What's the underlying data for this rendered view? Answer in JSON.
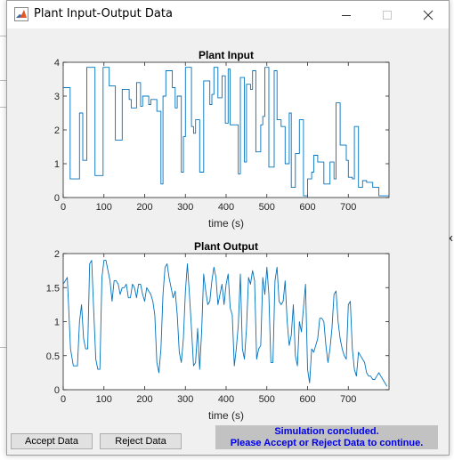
{
  "window": {
    "title": "Plant Input-Output Data",
    "icon": "matlab-icon",
    "controls": [
      "minimize-icon",
      "maximize-icon",
      "close-icon"
    ]
  },
  "background": {
    "edge_glyph": "x"
  },
  "buttons": {
    "accept_label": "Accept Data",
    "reject_label": "Reject Data"
  },
  "status": {
    "line1": "Simulation concluded.",
    "line2": "Please Accept or Reject Data to continue.",
    "color": "#0000ee"
  },
  "colors": {
    "line": "#0072bd",
    "panel": "#f0f0f0",
    "status_bg": "#c2c2c2"
  },
  "chart_data": [
    {
      "type": "line",
      "title": "Plant Input",
      "xlabel": "time (s)",
      "ylabel": "",
      "xlim": [
        0,
        800
      ],
      "ylim": [
        0,
        4
      ],
      "xticks": [
        "0",
        "100",
        "200",
        "300",
        "400",
        "500",
        "600",
        "700"
      ],
      "yticks": [
        "0",
        "1",
        "2",
        "3",
        "4"
      ],
      "series": [
        {
          "step": true,
          "x": [
            0,
            17,
            40,
            48,
            58,
            78,
            98,
            113,
            128,
            145,
            162,
            167,
            180,
            190,
            195,
            210,
            215,
            230,
            240,
            245,
            252,
            268,
            275,
            280,
            290,
            295,
            300,
            315,
            320,
            325,
            335,
            345,
            360,
            365,
            370,
            380,
            390,
            398,
            405,
            410,
            430,
            435,
            445,
            450,
            460,
            465,
            473,
            485,
            490,
            495,
            505,
            518,
            525,
            535,
            545,
            555,
            560,
            570,
            580,
            590,
            600,
            610,
            615,
            625,
            630,
            640,
            655,
            665,
            670,
            680,
            695,
            700,
            710,
            715,
            725,
            735,
            745,
            760,
            775
          ],
          "y": [
            3.25,
            0.55,
            2.5,
            1.1,
            3.85,
            0.65,
            3.85,
            3.3,
            1.7,
            3.2,
            2.9,
            2.65,
            3.4,
            2.7,
            3.0,
            2.75,
            2.9,
            2.55,
            0.4,
            3.0,
            3.75,
            3.25,
            2.65,
            3.0,
            0.75,
            1.8,
            3.85,
            2.1,
            1.9,
            2.3,
            0.75,
            3.45,
            2.75,
            3.05,
            3.85,
            2.95,
            3.6,
            2.2,
            3.8,
            2.15,
            0.7,
            3.55,
            1.05,
            3.35,
            3.2,
            3.75,
            1.35,
            2.15,
            2.4,
            3.85,
            0.9,
            3.75,
            2.3,
            2.1,
            1.0,
            2.5,
            0.3,
            1.3,
            2.3,
            0.05,
            0.55,
            0.75,
            1.25,
            1.05,
            1.05,
            0.4,
            1.05,
            0.55,
            2.8,
            1.55,
            1.1,
            0.6,
            0.55,
            2.1,
            0.3,
            0.5,
            0.45,
            0.3,
            0.05
          ]
        }
      ]
    },
    {
      "type": "line",
      "title": "Plant Output",
      "xlabel": "time (s)",
      "ylabel": "",
      "xlim": [
        0,
        800
      ],
      "ylim": [
        0,
        2
      ],
      "xticks": [
        "0",
        "100",
        "200",
        "300",
        "400",
        "500",
        "600",
        "700"
      ],
      "yticks": [
        "0",
        "0.5",
        "1",
        "1.5",
        "2"
      ],
      "series": [
        {
          "x": [
            0,
            5,
            10,
            18,
            25,
            35,
            40,
            45,
            50,
            55,
            60,
            65,
            70,
            75,
            80,
            85,
            90,
            95,
            100,
            105,
            110,
            115,
            120,
            125,
            130,
            135,
            140,
            145,
            150,
            155,
            160,
            165,
            170,
            175,
            180,
            185,
            190,
            195,
            200,
            205,
            210,
            215,
            220,
            225,
            230,
            235,
            240,
            245,
            250,
            255,
            260,
            265,
            270,
            275,
            280,
            285,
            290,
            295,
            300,
            305,
            310,
            315,
            320,
            325,
            330,
            335,
            340,
            345,
            350,
            355,
            360,
            365,
            370,
            375,
            380,
            385,
            390,
            395,
            400,
            405,
            410,
            415,
            420,
            425,
            430,
            435,
            440,
            445,
            450,
            455,
            460,
            465,
            470,
            475,
            480,
            485,
            490,
            495,
            500,
            505,
            510,
            515,
            520,
            525,
            530,
            535,
            540,
            545,
            550,
            555,
            560,
            565,
            570,
            575,
            580,
            585,
            590,
            595,
            600,
            605,
            610,
            615,
            620,
            625,
            630,
            635,
            640,
            645,
            650,
            655,
            660,
            665,
            670,
            675,
            680,
            685,
            690,
            695,
            700,
            705,
            710,
            715,
            720,
            725,
            730,
            735,
            740,
            745,
            750,
            755,
            760,
            765,
            770,
            775,
            780,
            785,
            790,
            795
          ],
          "y": [
            1.55,
            1.6,
            1.65,
            0.6,
            0.35,
            0.35,
            1.0,
            1.25,
            0.75,
            0.6,
            0.6,
            1.85,
            1.9,
            1.15,
            0.45,
            0.3,
            0.3,
            1.65,
            1.9,
            1.9,
            1.75,
            1.6,
            1.3,
            1.6,
            1.6,
            1.55,
            1.4,
            1.5,
            1.5,
            1.55,
            1.35,
            1.35,
            1.55,
            1.5,
            1.35,
            1.55,
            1.55,
            1.4,
            1.3,
            1.5,
            1.45,
            1.4,
            1.3,
            1.1,
            0.4,
            0.25,
            0.6,
            1.4,
            1.8,
            1.85,
            1.65,
            1.5,
            1.35,
            1.45,
            1.1,
            0.55,
            0.4,
            0.75,
            1.45,
            1.85,
            1.4,
            0.9,
            0.35,
            0.4,
            0.9,
            0.3,
            0.85,
            1.7,
            1.45,
            1.25,
            1.3,
            1.6,
            1.8,
            1.65,
            1.25,
            1.4,
            1.55,
            1.25,
            1.55,
            1.7,
            1.2,
            1.1,
            0.35,
            0.6,
            0.95,
            1.7,
            0.6,
            0.45,
            0.9,
            1.65,
            1.55,
            1.75,
            1.6,
            0.45,
            0.6,
            0.65,
            1.65,
            1.4,
            1.8,
            1.4,
            0.4,
            0.4,
            1.6,
            1.8,
            1.3,
            1.25,
            1.3,
            1.6,
            1.0,
            0.65,
            0.8,
            1.25,
            0.5,
            0.35,
            1.0,
            0.85,
            1.2,
            1.55,
            0.3,
            0.1,
            0.6,
            0.55,
            0.65,
            0.75,
            1.05,
            1.05,
            1.0,
            0.65,
            0.4,
            0.6,
            0.9,
            1.4,
            1.45,
            1.0,
            0.75,
            0.6,
            0.5,
            0.45,
            1.25,
            1.3,
            0.6,
            0.3,
            0.2,
            0.55,
            0.5,
            0.45,
            0.4,
            0.25,
            0.2,
            0.2,
            0.15,
            0.15,
            0.2,
            0.25,
            0.2,
            0.15,
            0.1,
            0.05
          ]
        }
      ]
    }
  ]
}
